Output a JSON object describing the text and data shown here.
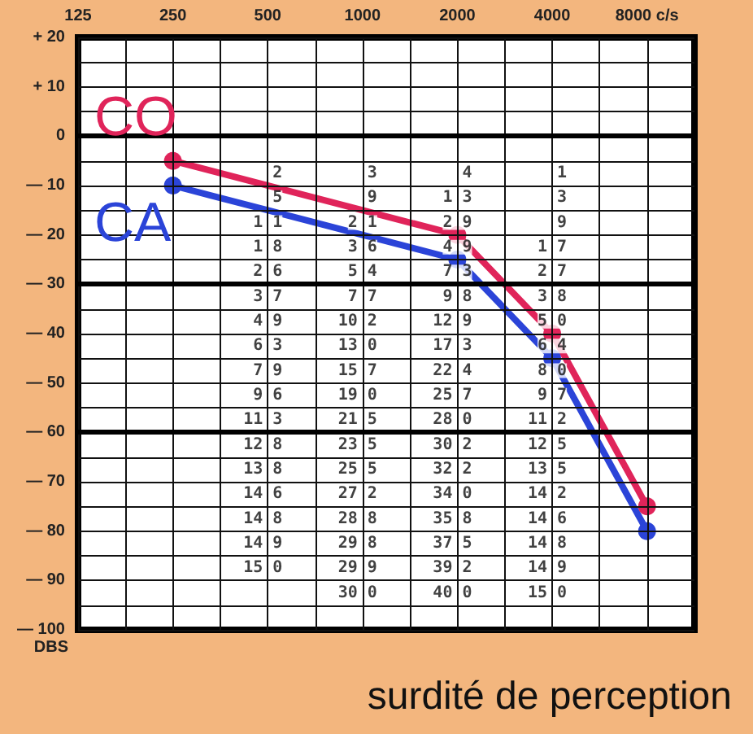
{
  "chart_data": {
    "type": "line",
    "title": "surdité de perception",
    "ylabel": "DBS",
    "xlim": [
      125,
      11314
    ],
    "log": "x",
    "xticks": [
      125,
      {
        "value": 177,
        "label": null
      },
      250,
      {
        "value": 354,
        "label": null
      },
      500,
      {
        "value": 707,
        "label": null
      },
      1000,
      {
        "value": 1414,
        "label": null
      },
      2000,
      {
        "value": 2828,
        "label": null
      },
      4000,
      {
        "value": 5657,
        "label": null
      },
      {
        "value": 8000,
        "label": "8000 c/s"
      }
    ],
    "ylim": [
      -100,
      20
    ],
    "yticks": [
      {
        "value": 20,
        "label": "+ 20"
      },
      {
        "value": 15,
        "label": null
      },
      {
        "value": 10,
        "label": "+ 10"
      },
      {
        "value": 5,
        "label": null
      },
      0,
      {
        "value": -5,
        "label": null
      },
      {
        "value": -10,
        "label": "— 10"
      },
      {
        "value": -15,
        "label": null
      },
      {
        "value": -20,
        "label": "— 20"
      },
      {
        "value": -25,
        "label": null
      },
      {
        "value": -30,
        "label": "— 30"
      },
      {
        "value": -35,
        "label": null
      },
      {
        "value": -40,
        "label": "— 40"
      },
      {
        "value": -45,
        "label": null
      },
      {
        "value": -50,
        "label": "— 50"
      },
      {
        "value": -55,
        "label": null
      },
      {
        "value": -60,
        "label": "— 60"
      },
      {
        "value": -65,
        "label": null
      },
      {
        "value": -70,
        "label": "— 70"
      },
      {
        "value": -75,
        "label": null
      },
      {
        "value": -80,
        "label": "— 80"
      },
      {
        "value": -85,
        "label": null
      },
      {
        "value": -90,
        "label": "— 90"
      },
      {
        "value": -95,
        "label": null
      },
      {
        "value": -100,
        "label": "— 100"
      }
    ],
    "grid": true,
    "marker": "circle",
    "line_style": "solid",
    "legend": false,
    "series": [
      {
        "name": "CO",
        "color": "#e0245a",
        "x": [
          250,
          2000,
          4000,
          8000
        ],
        "values": [
          -5,
          -20,
          -40,
          -75
        ]
      },
      {
        "name": "CA",
        "color": "#2b44d8",
        "x": [
          250,
          2000,
          4000,
          8000
        ],
        "values": [
          -10,
          -25,
          -45,
          -80
        ]
      }
    ],
    "annotations": [
      "2",
      "5",
      "1 1",
      "1 8",
      "2 6",
      "3 7",
      "4 9",
      "6 3",
      "7 9",
      "9 6",
      "11 3",
      "12 8",
      "13 8",
      "14 6",
      "14 8",
      "14 9",
      "15 0",
      "3",
      "9",
      "2 1",
      "3 6",
      "5 4",
      "7 7",
      "10 2",
      "13 0",
      "15 7",
      "19 0",
      "21 5",
      "23 5",
      "25 5",
      "27 2",
      "28 8",
      "29 8",
      "29 9",
      "30 0",
      "4",
      "1 3",
      "2 9",
      "4 9",
      "7 3",
      "9 8",
      "12 9",
      "17 3",
      "22 4",
      "25 7",
      "28 0",
      "30 2",
      "32 2",
      "34 0",
      "35 8",
      "37 5",
      "39 2",
      "40 0",
      "1",
      "3",
      "9",
      "1 7",
      "2 7",
      "3 8",
      "5 0",
      "6 4",
      "8 0",
      "9 7",
      "11 2",
      "12 5",
      "13 5",
      "14 2",
      "14 6",
      "14 8",
      "14 9",
      "15 0"
    ]
  }
}
